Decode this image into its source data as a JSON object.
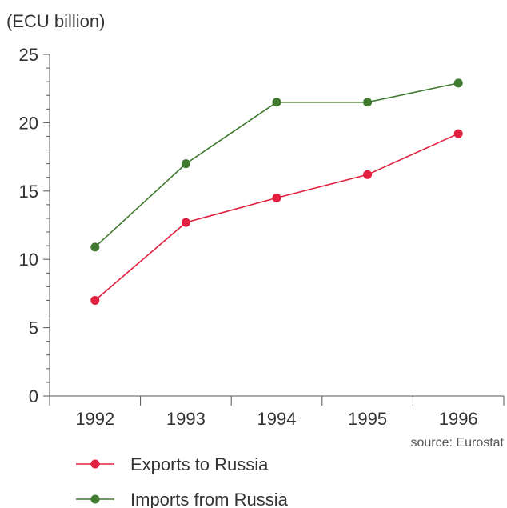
{
  "chart_data": {
    "type": "line",
    "title": "",
    "xlabel": "",
    "ylabel": "(ECU billion)",
    "categories": [
      "1992",
      "1993",
      "1994",
      "1995",
      "1996"
    ],
    "ylim": [
      0,
      25
    ],
    "yticks": [
      "0",
      "5",
      "10",
      "15",
      "20",
      "25"
    ],
    "grid": false,
    "legend_position": "bottom-left",
    "series": [
      {
        "name": "Exports to Russia",
        "color": "#e0203e",
        "values": [
          7.0,
          12.7,
          14.5,
          16.2,
          19.2
        ]
      },
      {
        "name": "Imports from Russia",
        "color": "#3f7a2f",
        "values": [
          10.9,
          17.0,
          21.5,
          21.5,
          22.9
        ]
      }
    ],
    "source": "source: Eurostat"
  }
}
